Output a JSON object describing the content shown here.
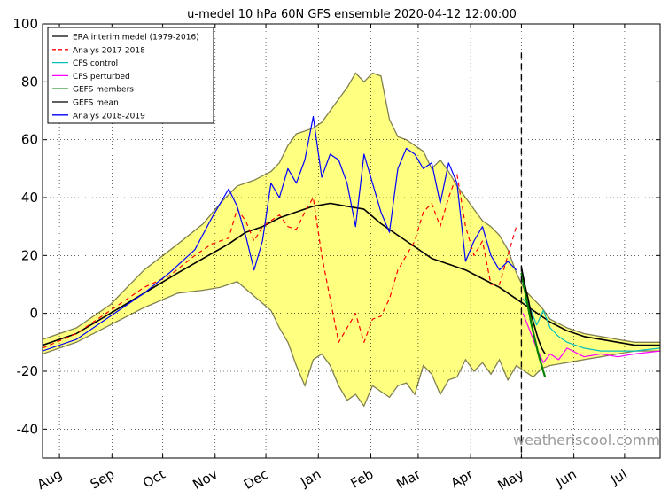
{
  "chart_data": {
    "type": "line",
    "title": "u-medel 10 hPa 60N GFS ensemble 2020-04-12 12:00:00",
    "xlabel": "",
    "ylabel": "",
    "xlim_day": [
      0,
      365
    ],
    "ylim": [
      -50,
      100
    ],
    "yticks": [
      100,
      80,
      60,
      40,
      20,
      0,
      -20,
      -40
    ],
    "month_ticks": [
      {
        "label": "Aug",
        "day": 10
      },
      {
        "label": "Sep",
        "day": 41
      },
      {
        "label": "Oct",
        "day": 71
      },
      {
        "label": "Nov",
        "day": 102
      },
      {
        "label": "Dec",
        "day": 132
      },
      {
        "label": "Jan",
        "day": 163
      },
      {
        "label": "Feb",
        "day": 194
      },
      {
        "label": "Mar",
        "day": 222
      },
      {
        "label": "Apr",
        "day": 253
      },
      {
        "label": "May",
        "day": 283
      },
      {
        "label": "Jun",
        "day": 314
      },
      {
        "label": "Jul",
        "day": 344
      }
    ],
    "grid": true,
    "forecast_start_day": 283,
    "watermark": "weatheriscool.comm",
    "legend": {
      "placement": "top-left",
      "entries": [
        {
          "label": "ERA interim medel (1979-2016)",
          "color": "#000000",
          "style": "solid"
        },
        {
          "label": "Analys 2017-2018",
          "color": "#ff0000",
          "style": "dashed"
        },
        {
          "label": "CFS control",
          "color": "#00bfbf",
          "style": "solid"
        },
        {
          "label": "CFS perturbed",
          "color": "#ff00ff",
          "style": "solid"
        },
        {
          "label": "GEFS members",
          "color": "#008000",
          "style": "solid"
        },
        {
          "label": "GEFS mean",
          "color": "#000000",
          "style": "solid"
        },
        {
          "label": "Analys 2018-2019",
          "color": "#0000ff",
          "style": "solid"
        }
      ]
    },
    "band": {
      "name": "historical range (min-max)",
      "fill": "#ffff80",
      "edge": "#808050",
      "days": [
        0,
        20,
        40,
        60,
        80,
        95,
        105,
        115,
        125,
        135,
        140,
        145,
        150,
        155,
        160,
        165,
        170,
        175,
        180,
        185,
        190,
        195,
        200,
        205,
        210,
        215,
        220,
        225,
        230,
        235,
        240,
        245,
        250,
        255,
        260,
        265,
        270,
        275,
        280,
        285,
        290,
        295,
        300,
        310,
        320,
        330,
        340,
        350,
        365
      ],
      "upper": [
        -9,
        -5,
        3,
        15,
        24,
        31,
        38,
        44,
        46,
        49,
        52,
        58,
        62,
        63,
        64,
        66,
        70,
        74,
        78,
        83,
        80,
        83,
        82,
        67,
        61,
        60,
        58,
        56,
        50,
        53,
        49,
        44,
        40,
        36,
        32,
        30,
        27,
        22,
        14,
        8,
        5,
        2,
        -2,
        -5,
        -7,
        -8,
        -9,
        -10,
        -10
      ],
      "lower": [
        -14,
        -10,
        -4,
        2,
        7,
        8,
        9,
        11,
        6,
        1,
        -5,
        -10,
        -18,
        -25,
        -16,
        -14,
        -18,
        -25,
        -30,
        -28,
        -32,
        -25,
        -27,
        -29,
        -25,
        -24,
        -28,
        -18,
        -21,
        -28,
        -23,
        -22,
        -16,
        -20,
        -17,
        -21,
        -16,
        -23,
        -18,
        -20,
        -22,
        -19,
        -18,
        -17,
        -16,
        -15,
        -14,
        -13,
        -13
      ]
    },
    "series": [
      {
        "name": "ERA interim medel (1979-2016)",
        "color": "#000000",
        "dash": "",
        "width": 1.6,
        "x": [
          0,
          20,
          40,
          60,
          80,
          95,
          110,
          120,
          130,
          140,
          150,
          160,
          170,
          180,
          190,
          200,
          210,
          220,
          230,
          240,
          250,
          260,
          270,
          280,
          290,
          300,
          310,
          320,
          330,
          340,
          350,
          365
        ],
        "y": [
          -11,
          -7,
          0,
          7,
          14,
          19,
          24,
          28,
          30,
          33,
          35,
          37,
          38,
          37,
          36,
          31,
          27,
          23,
          19,
          17,
          15,
          12,
          9,
          5,
          1,
          -3,
          -6,
          -8,
          -9,
          -10,
          -11,
          -11
        ]
      },
      {
        "name": "Analys 2017-2018",
        "color": "#ff0000",
        "dash": "5,4",
        "width": 1.2,
        "x": [
          0,
          20,
          40,
          60,
          75,
          90,
          100,
          110,
          115,
          120,
          125,
          130,
          140,
          145,
          150,
          155,
          160,
          165,
          170,
          175,
          180,
          185,
          190,
          195,
          200,
          205,
          210,
          215,
          220,
          225,
          230,
          235,
          240,
          245,
          250,
          255,
          260,
          265,
          270,
          275,
          280
        ],
        "y": [
          -12,
          -7,
          1,
          9,
          13,
          20,
          24,
          26,
          36,
          32,
          25,
          30,
          34,
          30,
          29,
          35,
          40,
          20,
          5,
          -10,
          -5,
          0,
          -10,
          -2,
          -1,
          5,
          15,
          20,
          25,
          35,
          38,
          30,
          40,
          48,
          30,
          20,
          25,
          10,
          10,
          20,
          30
        ]
      },
      {
        "name": "CFS control",
        "color": "#00bfbf",
        "dash": "",
        "width": 1.2,
        "x": [
          284,
          288,
          292,
          296,
          300,
          305,
          310,
          320,
          330,
          340,
          350,
          365
        ],
        "y": [
          5,
          2,
          -4,
          1,
          -5,
          -8,
          -10,
          -12,
          -13,
          -13,
          -13,
          -12
        ]
      },
      {
        "name": "CFS perturbed",
        "color": "#ff00ff",
        "dash": "",
        "width": 1.2,
        "x": [
          284,
          288,
          292,
          296,
          300,
          305,
          310,
          320,
          330,
          340,
          350,
          365
        ],
        "y": [
          0,
          -6,
          -12,
          -17,
          -14,
          -16,
          -12,
          -15,
          -14,
          -15,
          -14,
          -13
        ]
      },
      {
        "name": "GEFS members",
        "color": "#008000",
        "dash": "",
        "width": 2.2,
        "x": [
          283,
          285,
          287,
          289,
          291,
          293,
          295,
          297
        ],
        "y": [
          14,
          8,
          2,
          -4,
          -9,
          -14,
          -18,
          -22
        ]
      },
      {
        "name": "GEFS mean",
        "color": "#000000",
        "dash": "",
        "width": 1.6,
        "x": [
          283,
          285,
          287,
          289,
          291,
          293,
          295,
          297
        ],
        "y": [
          16,
          10,
          5,
          -1,
          -5,
          -9,
          -12,
          -14
        ]
      },
      {
        "name": "Analys 2018-2019",
        "color": "#0000ff",
        "dash": "",
        "width": 1.2,
        "x": [
          0,
          20,
          40,
          60,
          75,
          90,
          100,
          110,
          115,
          120,
          125,
          130,
          135,
          140,
          145,
          150,
          155,
          160,
          165,
          170,
          175,
          180,
          185,
          190,
          195,
          200,
          205,
          210,
          215,
          220,
          225,
          230,
          235,
          240,
          245,
          250,
          255,
          260,
          265,
          270,
          275,
          280
        ],
        "y": [
          -13,
          -9,
          -1,
          7,
          14,
          22,
          33,
          43,
          37,
          27,
          15,
          25,
          45,
          40,
          50,
          45,
          53,
          68,
          47,
          55,
          53,
          45,
          30,
          55,
          45,
          35,
          28,
          50,
          57,
          55,
          50,
          52,
          38,
          52,
          45,
          18,
          25,
          30,
          20,
          15,
          18,
          15
        ]
      }
    ]
  }
}
